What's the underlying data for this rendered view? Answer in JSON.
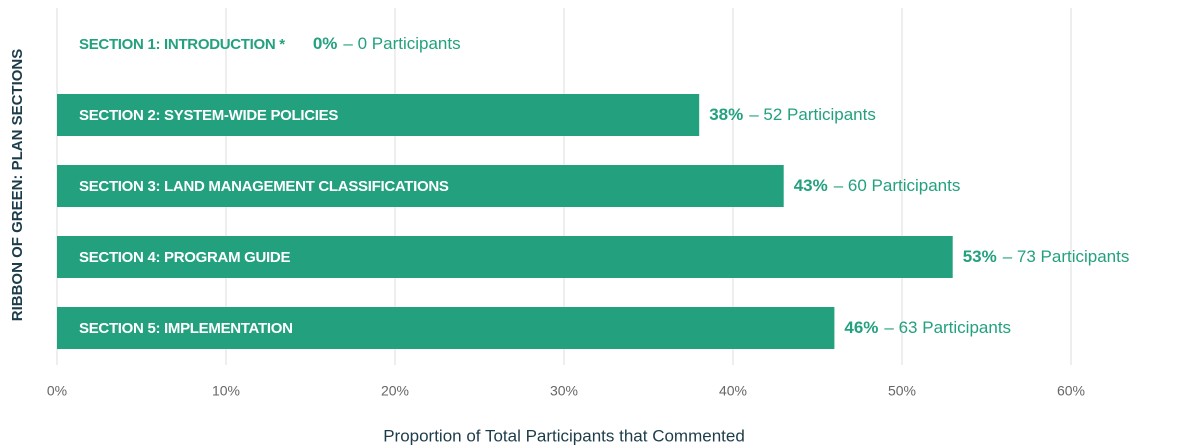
{
  "chart_data": {
    "type": "barh",
    "ylabel": "RIBBON OF GREEN: PLAN SECTIONS",
    "xlabel": "Proportion of Total Participants that Commented",
    "categories": [
      "SECTION 1: INTRODUCTION *",
      "SECTION 2: SYSTEM-WIDE POLICIES",
      "SECTION 3: LAND MANAGEMENT CLASSIFICATIONS",
      "SECTION 4: PROGRAM GUIDE",
      "SECTION 5: IMPLEMENTATION"
    ],
    "values": [
      0,
      38,
      43,
      53,
      46
    ],
    "value_labels": [
      "0%",
      "38%",
      "43%",
      "53%",
      "46%"
    ],
    "participant_labels": [
      "– 0 Participants",
      "– 52 Participants",
      "– 60 Participants",
      "– 73 Participants",
      "– 63 Participants"
    ],
    "color": "#23a17f",
    "xlim": [
      0,
      60
    ],
    "xticks": [
      {
        "value": 0,
        "label": "0%"
      },
      {
        "value": 10,
        "label": "10%"
      },
      {
        "value": 20,
        "label": "20%"
      },
      {
        "value": 30,
        "label": "30%"
      },
      {
        "value": 40,
        "label": "40%"
      },
      {
        "value": 50,
        "label": "50%"
      },
      {
        "value": 60,
        "label": "60%"
      }
    ],
    "grid": true
  }
}
